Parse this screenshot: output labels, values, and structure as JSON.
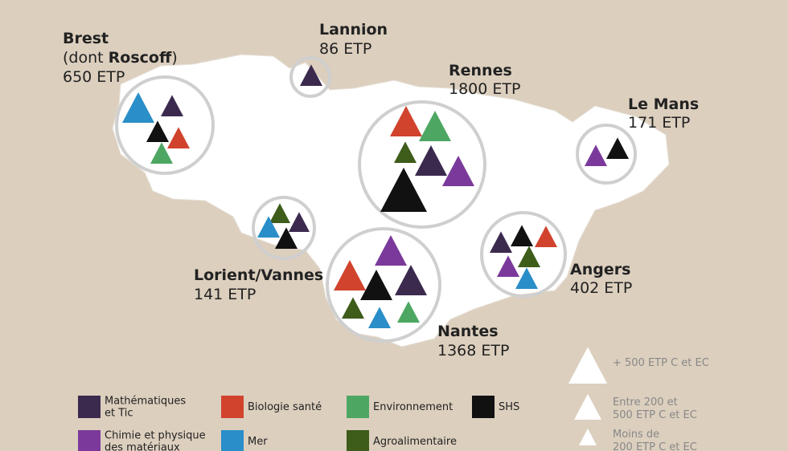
{
  "cities": [
    {
      "name": "Brest",
      "note": [
        "(dont ",
        "Roscoff",
        ")"
      ],
      "etp": "650 ETP"
    },
    {
      "name": "Lannion",
      "etp": "86 ETP"
    },
    {
      "name": "Rennes",
      "etp": "1800 ETP"
    },
    {
      "name": "Le Mans",
      "etp": "171 ETP"
    },
    {
      "name": "Lorient/Vannes",
      "etp": "141 ETP"
    },
    {
      "name": "Angers",
      "etp": "402 ETP"
    },
    {
      "name": "Nantes",
      "etp": "1368 ETP"
    }
  ],
  "legend": [
    {
      "lines": [
        "Mathématiques",
        "et Tic"
      ],
      "color": "#3b2a4e"
    },
    {
      "lines": [
        "Biologie santé"
      ],
      "color": "#d1432d"
    },
    {
      "lines": [
        "Environnement"
      ],
      "color": "#4da763"
    },
    {
      "lines": [
        "SHS"
      ],
      "color": "#111111"
    },
    {
      "lines": [
        "Chimie et physique",
        "des matériaux"
      ],
      "color": "#7b3a9b"
    },
    {
      "lines": [
        "Mer"
      ],
      "color": "#2a8ec8"
    },
    {
      "lines": [
        "Agroalimentaire"
      ],
      "color": "#3e5c1a"
    }
  ],
  "size_legend": [
    {
      "lines": [
        "+ 500 ETP C et EC"
      ]
    },
    {
      "lines": [
        "Entre 200 et",
        "500 ETP C et EC"
      ]
    },
    {
      "lines": [
        "Moins de",
        "200 ETP C et EC"
      ]
    }
  ]
}
